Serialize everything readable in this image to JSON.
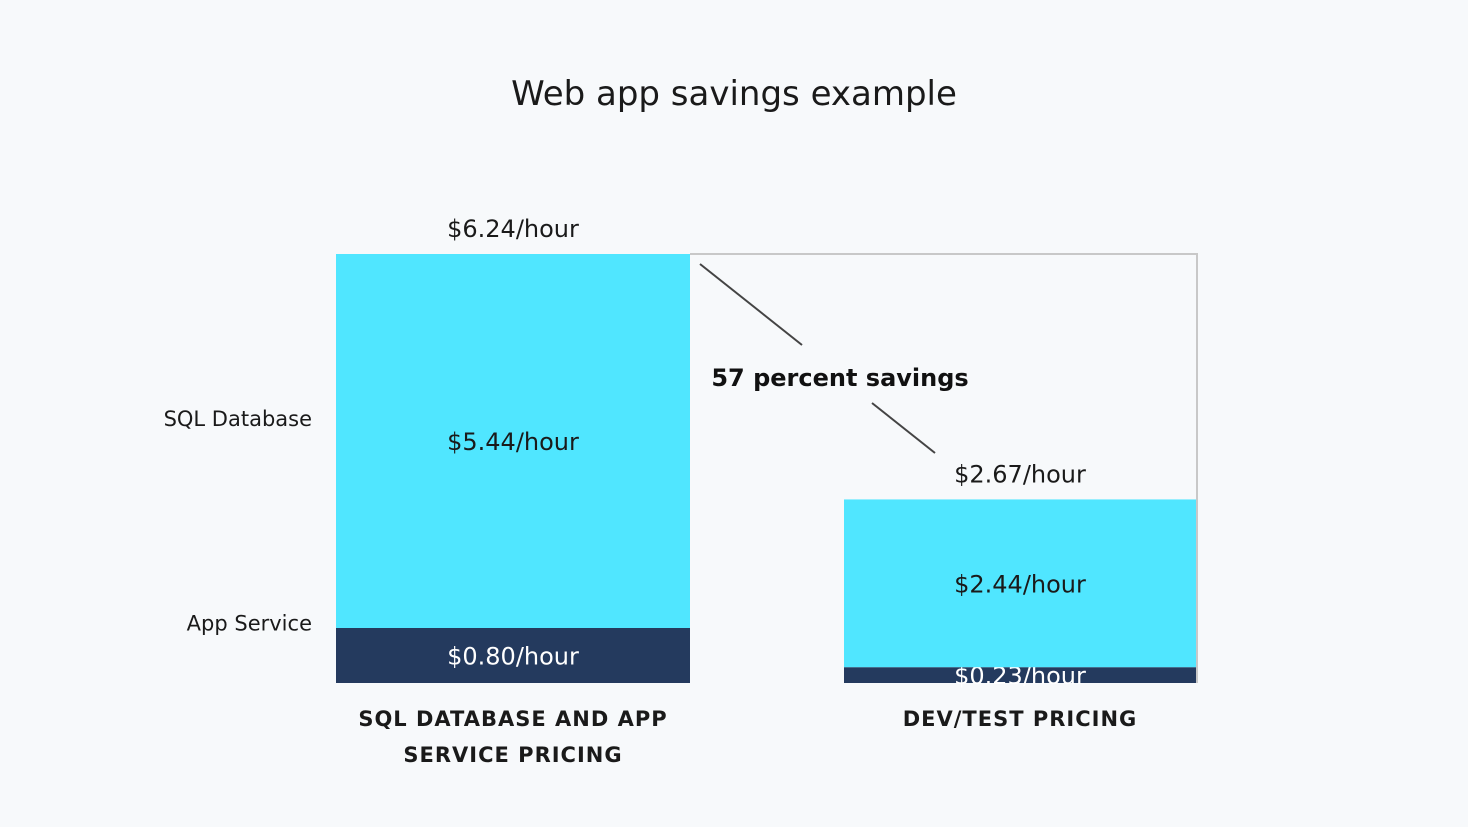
{
  "chart_data": {
    "type": "bar",
    "stacked": true,
    "title": "Web app savings example",
    "categories": [
      "SQL DATABASE AND APP SERVICE PRICING",
      "DEV/TEST PRICING"
    ],
    "category_lines": [
      [
        "SQL DATABASE AND APP",
        "SERVICE PRICING"
      ],
      [
        "DEV/TEST PRICING"
      ]
    ],
    "series": [
      {
        "name": "App Service",
        "values": [
          0.8,
          0.23
        ],
        "labels": [
          "$0.80/hour",
          "$0.23/hour"
        ],
        "color": "#243a5e",
        "text_color": "#ffffff"
      },
      {
        "name": "SQL Database",
        "values": [
          5.44,
          2.44
        ],
        "labels": [
          "$5.44/hour",
          "$2.44/hour"
        ],
        "color": "#50e6ff",
        "text_color": "#1a1a1a"
      }
    ],
    "totals": [
      6.24,
      2.67
    ],
    "total_labels": [
      "$6.24/hour",
      "$2.67/hour"
    ],
    "annotation": "57 percent savings",
    "unit": "$/hour",
    "grid": false,
    "legend": "left"
  }
}
